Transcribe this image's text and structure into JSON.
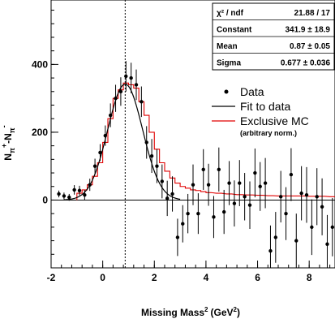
{
  "chart_data": {
    "type": "scatter",
    "xlabel": "Missing Mass",
    "xlabel_sup": "2",
    "xlabel_unit": "(GeV",
    "xlabel_unit_sup": "2",
    "xlabel_close": ")",
    "ylabel": "N",
    "ylabel_sub": "π",
    "ylabel_sup": "+",
    "ylabel_mid": "-N",
    "ylabel_sub2": "π",
    "ylabel_sup2": "-",
    "xlim": [
      -2,
      9
    ],
    "ylim": [
      -200,
      590
    ],
    "x_ticks": [
      -2,
      0,
      2,
      4,
      6,
      8
    ],
    "y_ticks": [
      0,
      200,
      400
    ],
    "reference_line_x": 0.87,
    "stats_box": {
      "rows": [
        {
          "label": "χ² / ndf",
          "value": "21.88 / 17"
        },
        {
          "label": "Constant",
          "value": "341.9 ± 18.9"
        },
        {
          "label": "Mean",
          "value": "0.87 ± 0.05"
        },
        {
          "label": "Sigma",
          "value": "0.677 ± 0.036"
        }
      ]
    },
    "legend": {
      "data": "Data",
      "fit": "Fit to data",
      "mc": "Exclusive MC",
      "mc_note": "(arbitrary norm.)"
    },
    "fit": {
      "constant": 341.9,
      "mean": 0.87,
      "sigma": 0.677,
      "x_range": [
        -1.5,
        3.0
      ]
    },
    "colors": {
      "data": "#000000",
      "fit": "#000000",
      "mc": "#e00000"
    },
    "data_points": [
      {
        "x": -1.7,
        "y": 18,
        "err": 10
      },
      {
        "x": -1.5,
        "y": 12,
        "err": 10
      },
      {
        "x": -1.3,
        "y": 8,
        "err": 10
      },
      {
        "x": -1.1,
        "y": 30,
        "err": 14
      },
      {
        "x": -0.9,
        "y": 28,
        "err": 14
      },
      {
        "x": -0.7,
        "y": 15,
        "err": 14
      },
      {
        "x": -0.5,
        "y": 45,
        "err": 18
      },
      {
        "x": -0.3,
        "y": 100,
        "err": 22
      },
      {
        "x": -0.1,
        "y": 140,
        "err": 25
      },
      {
        "x": 0.1,
        "y": 190,
        "err": 30
      },
      {
        "x": 0.3,
        "y": 250,
        "err": 35
      },
      {
        "x": 0.5,
        "y": 300,
        "err": 40
      },
      {
        "x": 0.7,
        "y": 320,
        "err": 42
      },
      {
        "x": 0.9,
        "y": 365,
        "err": 45
      },
      {
        "x": 1.1,
        "y": 360,
        "err": 45
      },
      {
        "x": 1.3,
        "y": 340,
        "err": 45
      },
      {
        "x": 1.5,
        "y": 290,
        "err": 45
      },
      {
        "x": 1.7,
        "y": 170,
        "err": 48
      },
      {
        "x": 1.9,
        "y": 130,
        "err": 50
      },
      {
        "x": 2.1,
        "y": 100,
        "err": 50
      },
      {
        "x": 2.3,
        "y": 55,
        "err": 50
      },
      {
        "x": 2.5,
        "y": 5,
        "err": 52
      },
      {
        "x": 2.7,
        "y": 18,
        "err": 52
      },
      {
        "x": 2.9,
        "y": -110,
        "err": 55
      },
      {
        "x": 3.1,
        "y": -70,
        "err": 55
      },
      {
        "x": 3.3,
        "y": -40,
        "err": 58
      },
      {
        "x": 3.5,
        "y": 45,
        "err": 60
      },
      {
        "x": 3.7,
        "y": -40,
        "err": 60
      },
      {
        "x": 3.9,
        "y": 90,
        "err": 60
      },
      {
        "x": 4.1,
        "y": 45,
        "err": 62
      },
      {
        "x": 4.3,
        "y": -50,
        "err": 62
      },
      {
        "x": 4.5,
        "y": 90,
        "err": 65
      },
      {
        "x": 4.7,
        "y": -35,
        "err": 65
      },
      {
        "x": 4.9,
        "y": 50,
        "err": 65
      },
      {
        "x": 5.1,
        "y": -10,
        "err": 68
      },
      {
        "x": 5.3,
        "y": 50,
        "err": 68
      },
      {
        "x": 5.5,
        "y": 10,
        "err": 70
      },
      {
        "x": 5.7,
        "y": -15,
        "err": 70
      },
      {
        "x": 5.9,
        "y": 80,
        "err": 72
      },
      {
        "x": 6.1,
        "y": 40,
        "err": 72
      },
      {
        "x": 6.3,
        "y": 50,
        "err": 74
      },
      {
        "x": 6.5,
        "y": -150,
        "err": 75
      },
      {
        "x": 6.7,
        "y": -110,
        "err": 75
      },
      {
        "x": 6.9,
        "y": 10,
        "err": 76
      },
      {
        "x": 7.1,
        "y": -40,
        "err": 78
      },
      {
        "x": 7.3,
        "y": 75,
        "err": 78
      },
      {
        "x": 7.5,
        "y": -120,
        "err": 80
      },
      {
        "x": 7.7,
        "y": 20,
        "err": 80
      },
      {
        "x": 7.9,
        "y": 15,
        "err": 82
      },
      {
        "x": 8.1,
        "y": -80,
        "err": 82
      },
      {
        "x": 8.3,
        "y": 10,
        "err": 84
      },
      {
        "x": 8.5,
        "y": -20,
        "err": 84
      },
      {
        "x": 8.7,
        "y": -130,
        "err": 86
      },
      {
        "x": 8.9,
        "y": -80,
        "err": 86
      }
    ],
    "mc_histogram": {
      "bin_width": 0.2,
      "bins": [
        {
          "x": -1.0,
          "y": 20
        },
        {
          "x": -0.8,
          "y": 30
        },
        {
          "x": -0.6,
          "y": 45
        },
        {
          "x": -0.4,
          "y": 70
        },
        {
          "x": -0.2,
          "y": 110
        },
        {
          "x": 0.0,
          "y": 170
        },
        {
          "x": 0.2,
          "y": 240
        },
        {
          "x": 0.4,
          "y": 300
        },
        {
          "x": 0.6,
          "y": 325
        },
        {
          "x": 0.8,
          "y": 345
        },
        {
          "x": 1.0,
          "y": 340
        },
        {
          "x": 1.2,
          "y": 330
        },
        {
          "x": 1.4,
          "y": 290
        },
        {
          "x": 1.6,
          "y": 250
        },
        {
          "x": 1.8,
          "y": 200
        },
        {
          "x": 2.0,
          "y": 150
        },
        {
          "x": 2.2,
          "y": 110
        },
        {
          "x": 2.4,
          "y": 85
        },
        {
          "x": 2.6,
          "y": 65
        },
        {
          "x": 2.8,
          "y": 50
        },
        {
          "x": 3.0,
          "y": 40
        },
        {
          "x": 3.2,
          "y": 35
        },
        {
          "x": 3.4,
          "y": 30
        },
        {
          "x": 3.6,
          "y": 28
        },
        {
          "x": 3.8,
          "y": 25
        },
        {
          "x": 4.0,
          "y": 22
        },
        {
          "x": 4.4,
          "y": 20
        },
        {
          "x": 4.8,
          "y": 18
        },
        {
          "x": 5.2,
          "y": 16
        },
        {
          "x": 5.6,
          "y": 15
        },
        {
          "x": 6.0,
          "y": 14
        },
        {
          "x": 6.4,
          "y": 13
        },
        {
          "x": 6.8,
          "y": 12
        },
        {
          "x": 7.2,
          "y": 12
        },
        {
          "x": 7.6,
          "y": 12
        },
        {
          "x": 8.0,
          "y": 11
        },
        {
          "x": 8.4,
          "y": 11
        },
        {
          "x": 8.8,
          "y": 10
        }
      ]
    }
  }
}
